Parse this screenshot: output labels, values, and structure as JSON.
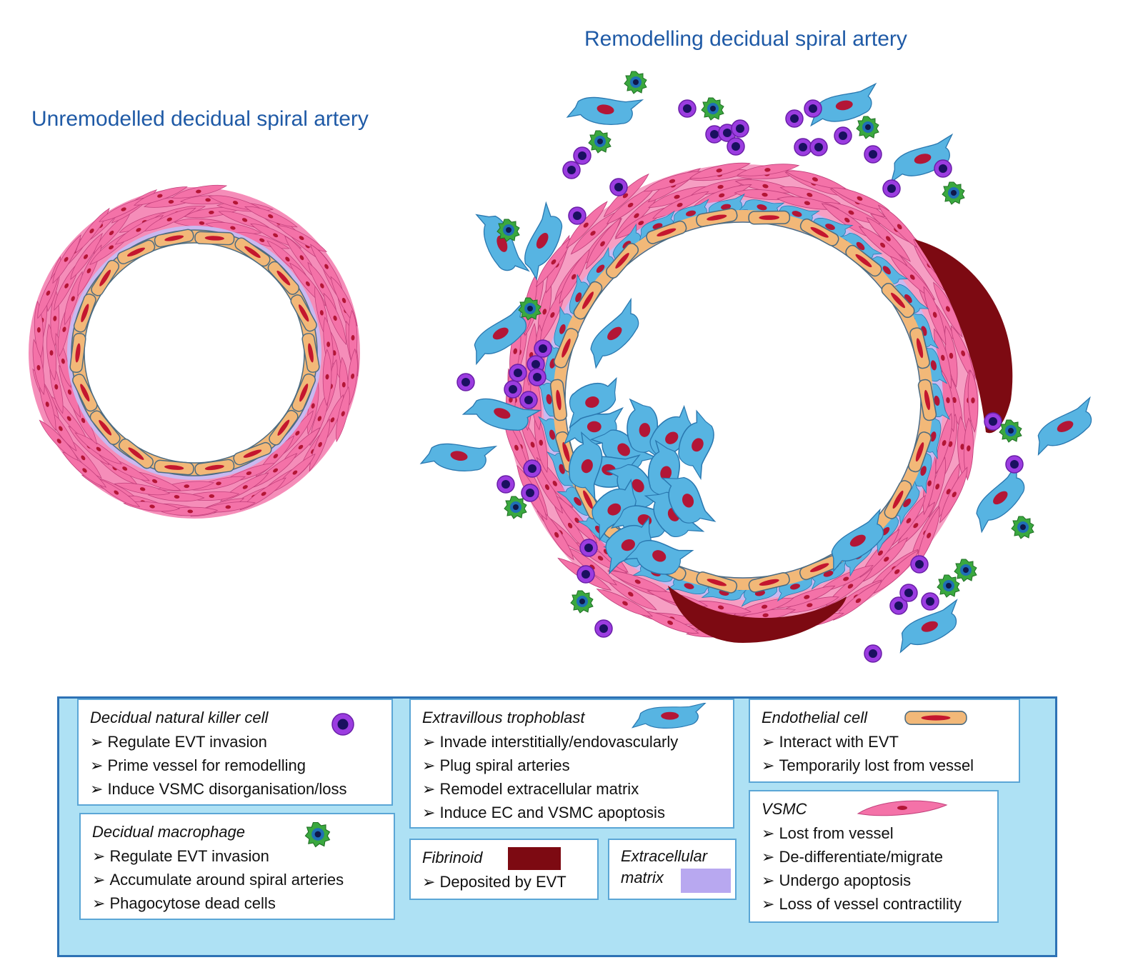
{
  "titles": {
    "left": "Unremodelled decidual spiral artery",
    "right": "Remodelling decidual spiral artery"
  },
  "colors": {
    "title": "#1f5aa6",
    "vsmc": "#f472a8",
    "endothelial": "#f2b878",
    "evt": "#57b4e2",
    "nucleus": "#b31636",
    "ecm": "#c9b9f0",
    "fibrinoid": "#7d0a12",
    "nk_cell": "#9b3ce0",
    "macrophage": "#2f9a3a",
    "legend_bg": "#aee1f4"
  },
  "legend": {
    "nk": {
      "title": "Decidual natural killer cell",
      "icon": "nk-cell-icon",
      "items": [
        "Regulate EVT invasion",
        "Prime vessel for remodelling",
        "Induce VSMC disorganisation/loss"
      ]
    },
    "macrophage": {
      "title": "Decidual macrophage",
      "icon": "macrophage-icon",
      "items": [
        "Regulate EVT invasion",
        "Accumulate around spiral arteries",
        "Phagocytose dead cells"
      ]
    },
    "evt": {
      "title": "Extravillous trophoblast",
      "icon": "trophoblast-icon",
      "items": [
        "Invade interstitially/endovascularly",
        "Plug spiral arteries",
        "Remodel extracellular matrix",
        "Induce EC and VSMC apoptosis"
      ]
    },
    "fibrinoid": {
      "title": "Fibrinoid",
      "icon": "fibrinoid-swatch",
      "items": [
        "Deposited by EVT"
      ]
    },
    "ecm": {
      "title_line1": "Extracellular",
      "title_line2": "matrix",
      "icon": "ecm-swatch"
    },
    "endothelial": {
      "title": "Endothelial cell",
      "icon": "endothelial-cell-icon",
      "items": [
        "Interact with EVT",
        "Temporarily lost from vessel"
      ]
    },
    "vsmc": {
      "title": "VSMC",
      "icon": "vsmc-icon",
      "items": [
        "Lost from vessel",
        "De-differentiate/migrate",
        "Undergo apoptosis",
        "Loss of vessel contractility"
      ]
    }
  }
}
